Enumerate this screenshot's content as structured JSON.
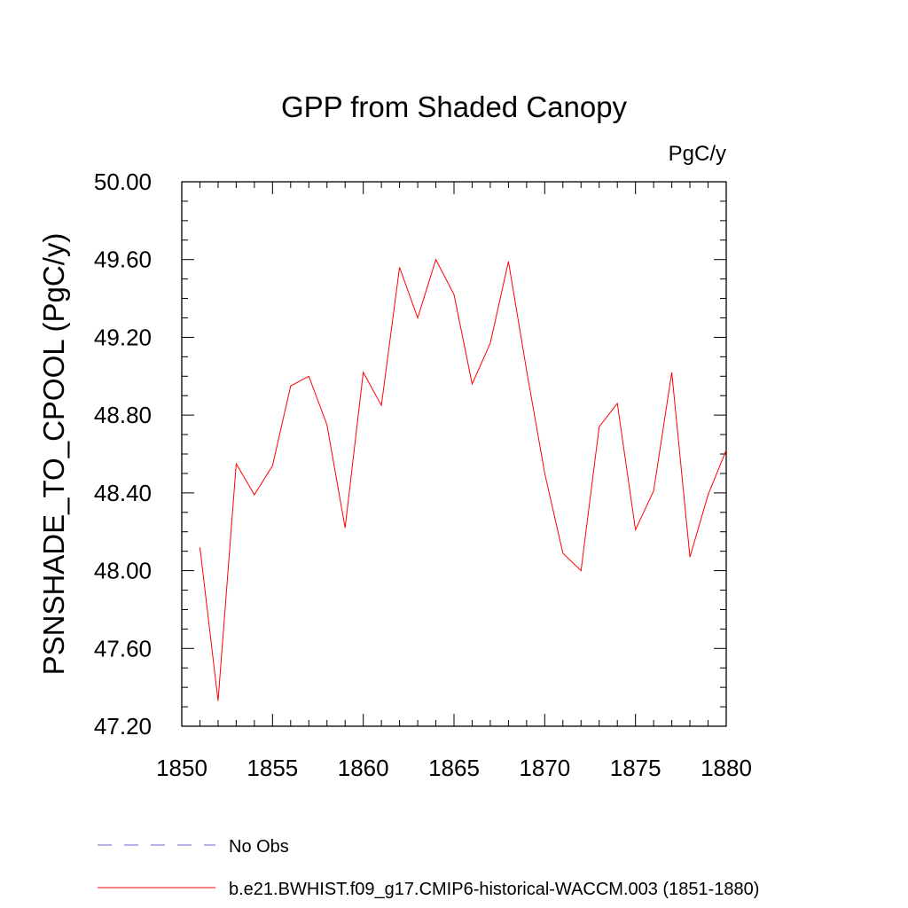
{
  "chart_data": {
    "type": "line",
    "title": "GPP from Shaded Canopy",
    "units": "PgC/y",
    "ylabel": "PSNSHADE_TO_CPOOL  (PgC/y)",
    "xlabel": "",
    "xlim": [
      1850,
      1880
    ],
    "ylim": [
      47.2,
      50.0
    ],
    "xticks": [
      "1850",
      "1855",
      "1860",
      "1865",
      "1870",
      "1875",
      "1880"
    ],
    "yticks": [
      "47.20",
      "47.60",
      "48.00",
      "48.40",
      "48.80",
      "49.20",
      "49.60",
      "50.00"
    ],
    "grid": false,
    "legend_position": "bottom-left",
    "series": [
      {
        "name": "No Obs",
        "color": "#6666cc",
        "style": "dashed",
        "x": [],
        "values": []
      },
      {
        "name": "b.e21.BWHIST.f09_g17.CMIP6-historical-WACCM.003 (1851-1880)",
        "color": "#ff0000",
        "style": "solid",
        "x": [
          1851,
          1852,
          1853,
          1854,
          1855,
          1856,
          1857,
          1858,
          1859,
          1860,
          1861,
          1862,
          1863,
          1864,
          1865,
          1866,
          1867,
          1868,
          1869,
          1870,
          1871,
          1872,
          1873,
          1874,
          1875,
          1876,
          1877,
          1878,
          1879,
          1880
        ],
        "values": [
          48.12,
          47.33,
          48.55,
          48.39,
          48.54,
          48.95,
          49.0,
          48.75,
          48.22,
          49.02,
          48.85,
          49.56,
          49.3,
          49.6,
          49.42,
          48.96,
          49.17,
          49.59,
          49.03,
          48.5,
          48.09,
          48.0,
          48.74,
          48.86,
          48.21,
          48.41,
          49.02,
          48.07,
          48.39,
          48.62
        ]
      }
    ]
  }
}
